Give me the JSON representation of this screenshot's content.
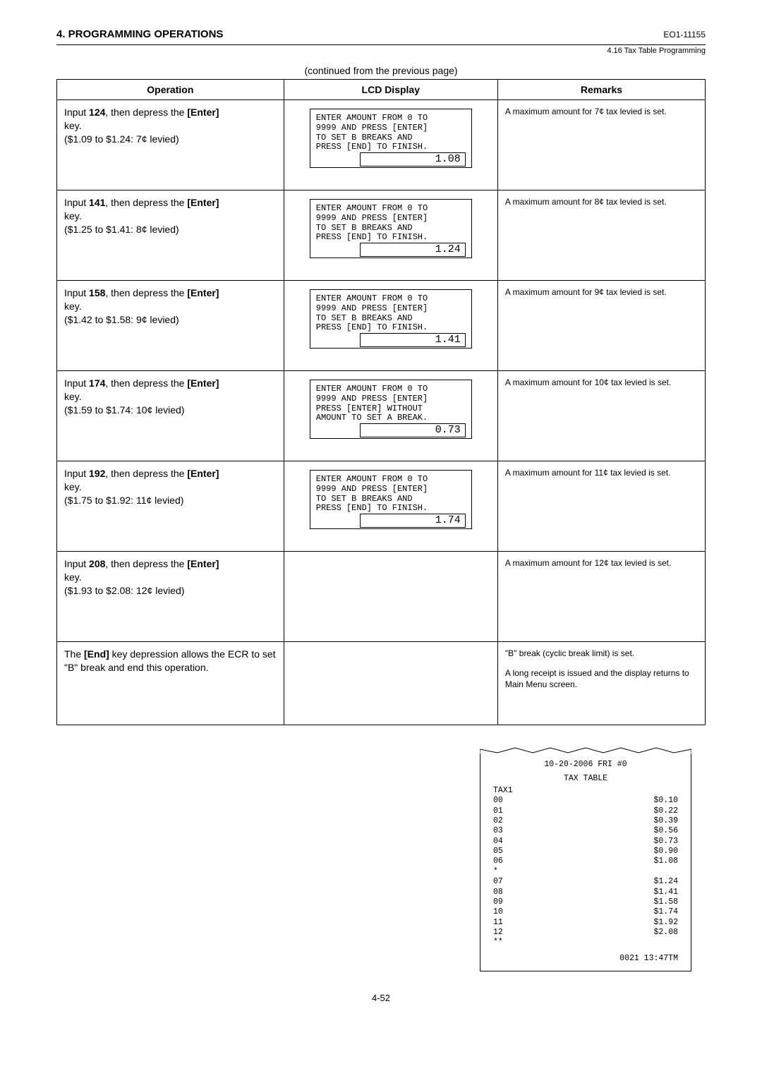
{
  "header": {
    "section_title": "4. PROGRAMMING OPERATIONS",
    "doc_id": "EO1-11155",
    "sub_caption": "4.16 Tax Table Programming"
  },
  "continued_label": "(continued from the previous page)",
  "table": {
    "headers": {
      "op": "Operation",
      "lcd": "LCD Display",
      "rem": "Remarks"
    },
    "rows": [
      {
        "op_num": "124",
        "op_range": "($1.09 to $1.24: 7¢ levied)",
        "lcd_lines": "ENTER AMOUNT FROM 0 TO\n9999 AND PRESS [ENTER]\nTO SET B BREAKS AND\nPRESS [END] TO FINISH.",
        "lcd_value": "1.08",
        "remark": "A maximum amount for 7¢ tax levied is set."
      },
      {
        "op_num": "141",
        "op_range": "($1.25 to $1.41: 8¢ levied)",
        "lcd_lines": "ENTER AMOUNT FROM 0 TO\n9999 AND PRESS [ENTER]\nTO SET B BREAKS AND\nPRESS [END] TO FINISH.",
        "lcd_value": "1.24",
        "remark": "A maximum amount for 8¢ tax levied is set."
      },
      {
        "op_num": "158",
        "op_range": "($1.42 to $1.58: 9¢ levied)",
        "lcd_lines": "ENTER AMOUNT FROM 0 TO\n9999 AND PRESS [ENTER]\nTO SET B BREAKS AND\nPRESS [END] TO FINISH.",
        "lcd_value": "1.41",
        "remark": "A maximum amount for 9¢ tax levied is set."
      },
      {
        "op_num": "174",
        "op_range": "($1.59 to $1.74: 10¢ levied)",
        "lcd_lines": "ENTER AMOUNT FROM 0 TO\n9999 AND PRESS [ENTER]\nPRESS [ENTER] WITHOUT\nAMOUNT TO SET A BREAK.",
        "lcd_value": "0.73",
        "remark": "A maximum amount for 10¢ tax levied is set."
      },
      {
        "op_num": "192",
        "op_range": "($1.75 to $1.92: 11¢ levied)",
        "lcd_lines": "ENTER AMOUNT FROM 0 TO\n9999 AND PRESS [ENTER]\nTO SET B BREAKS AND\nPRESS [END] TO FINISH.",
        "lcd_value": "1.74",
        "remark": "A maximum amount for 11¢ tax levied is set."
      },
      {
        "op_num": "208",
        "op_range": "($1.93 to $2.08: 12¢ levied)",
        "lcd_lines": "",
        "lcd_value": "",
        "remark": "A maximum amount for 12¢ tax levied is set."
      }
    ],
    "end_row": {
      "op_text_before": "The ",
      "op_text_bold": "[End]",
      "op_text_after": " key depression allows the ECR to set \"B\" break and end this operation.",
      "remark1": "\"B\" break (cyclic break limit) is set.",
      "remark2": "A long receipt is issued and the display returns to Main Menu screen."
    }
  },
  "input_label_before": "Input ",
  "input_label_mid": ", then depress the ",
  "enter_label": "[Enter]",
  "key_label": "key.",
  "receipt": {
    "date_line": "10-20-2006 FRI  #0",
    "title": "TAX TABLE",
    "tax_label": "TAX1",
    "seg1": [
      {
        "k": "00",
        "v": "$0.10"
      },
      {
        "k": "01",
        "v": "$0.22"
      },
      {
        "k": "02",
        "v": "$0.39"
      },
      {
        "k": "03",
        "v": "$0.56"
      },
      {
        "k": "04",
        "v": "$0.73"
      },
      {
        "k": "05",
        "v": "$0.90"
      },
      {
        "k": "06",
        "v": "$1.08"
      }
    ],
    "sep1": "*",
    "seg2": [
      {
        "k": "07",
        "v": "$1.24"
      },
      {
        "k": "08",
        "v": "$1.41"
      },
      {
        "k": "09",
        "v": "$1.58"
      },
      {
        "k": "10",
        "v": "$1.74"
      },
      {
        "k": "11",
        "v": "$1.92"
      },
      {
        "k": "12",
        "v": "$2.08"
      }
    ],
    "sep2": "**",
    "footer": "0021 13:47TM"
  },
  "page_number": "4-52"
}
